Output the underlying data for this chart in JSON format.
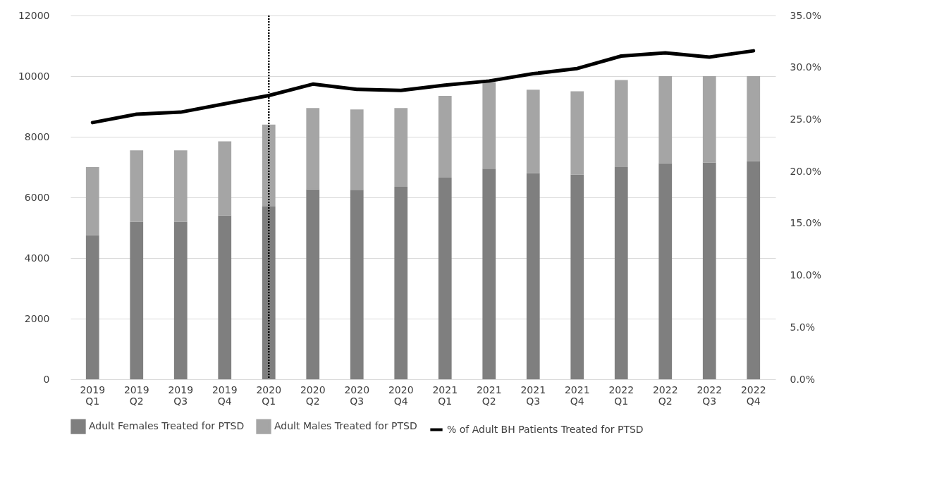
{
  "chart_data": {
    "type": "bar",
    "stacked": true,
    "categories": [
      "2019\nQ1",
      "2019\nQ2",
      "2019\nQ3",
      "2019\nQ4",
      "2020\nQ1",
      "2020\nQ2",
      "2020\nQ3",
      "2020\nQ4",
      "2021\nQ1",
      "2021\nQ2",
      "2021\nQ3",
      "2021\nQ4",
      "2022\nQ1",
      "2022\nQ2",
      "2022\nQ3",
      "2022\nQ4"
    ],
    "series": [
      {
        "name": "Adult Females Treated for PTSD",
        "color": "#7f7f7f",
        "values": [
          4750,
          5200,
          5200,
          5400,
          5700,
          6270,
          6250,
          6350,
          6650,
          6950,
          6800,
          6750,
          7000,
          7130,
          7150,
          7200
        ]
      },
      {
        "name": "Adult Males Treated for PTSD",
        "color": "#a5a5a5",
        "values": [
          2250,
          2350,
          2350,
          2450,
          2700,
          2680,
          2650,
          2600,
          2700,
          2850,
          2750,
          2750,
          2870,
          2870,
          2850,
          2800
        ]
      },
      {
        "name": "% of Adult BH Patients Treated for PTSD",
        "type": "line",
        "axis": "y2",
        "color": "#000000",
        "values": [
          24.7,
          25.5,
          25.7,
          26.5,
          27.3,
          28.4,
          27.9,
          27.8,
          28.3,
          28.7,
          29.4,
          29.9,
          31.1,
          31.4,
          31.0,
          31.6
        ]
      }
    ],
    "ylim": [
      0,
      12000
    ],
    "yticks": [
      0,
      2000,
      4000,
      6000,
      8000,
      10000,
      12000
    ],
    "y2lim": [
      0,
      35
    ],
    "y2ticks": [
      {
        "value": 0,
        "label": "0.0%"
      },
      {
        "value": 5,
        "label": "5.0%"
      },
      {
        "value": 10,
        "label": "10.0%"
      },
      {
        "value": 15,
        "label": "15.0%"
      },
      {
        "value": 20,
        "label": "20.0%"
      },
      {
        "value": 25,
        "label": "25.0%"
      },
      {
        "value": 30,
        "label": "30.0%"
      },
      {
        "value": 35,
        "label": "35.0%"
      }
    ],
    "ref_lines": [
      {
        "axis": "x",
        "value": "2020\nQ1",
        "color": "#000000",
        "line_style": "dotted"
      }
    ],
    "grid": "y",
    "legend": "bottom",
    "marker": "none",
    "line_style": "solid"
  }
}
